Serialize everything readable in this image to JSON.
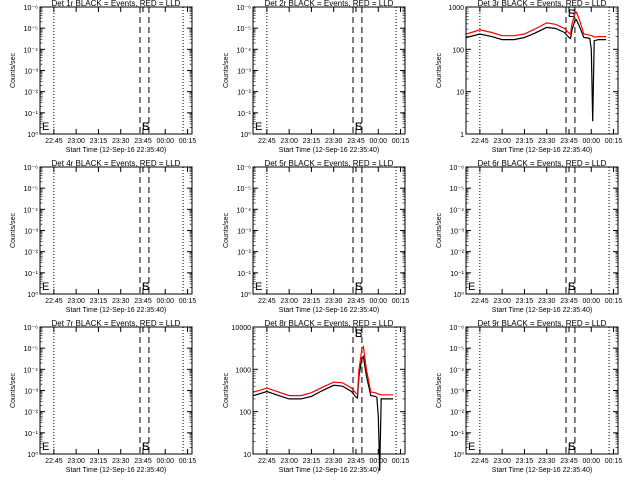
{
  "figure": {
    "xlabel": "Start Time (12-Sep-16 22:35:40)",
    "ylabel": "Counts/sec",
    "x_ticks": [
      "22:45",
      "23:00",
      "23:15",
      "23:30",
      "23:45",
      "00:00",
      "00:15"
    ],
    "x_range": [
      "22:35:40",
      "00:18:00"
    ],
    "flag_labels": [
      "E",
      "S",
      "E"
    ],
    "colors": {
      "events": "#000000",
      "lld": "#ff0000",
      "axes": "#000000",
      "background": "#ffffff"
    }
  },
  "chart_data": [
    {
      "title": "Det 1r BLACK = Events, RED = LLD",
      "type": "line",
      "yscale": "log",
      "ytick_labels": [
        "10⁰",
        "10⁻¹",
        "10⁻²",
        "10⁻³",
        "10⁻⁴",
        "10⁻⁵",
        "10⁻⁶"
      ],
      "series": []
    },
    {
      "title": "Det 2r BLACK = Events, RED = LLD",
      "type": "line",
      "yscale": "log",
      "ytick_labels": [
        "10⁰",
        "10⁻¹",
        "10⁻²",
        "10⁻³",
        "10⁻⁴",
        "10⁻⁵",
        "10⁻⁶"
      ],
      "series": []
    },
    {
      "title": "Det 3r BLACK = Events, RED = LLD",
      "type": "line",
      "yscale": "log",
      "ytick_labels": [
        "1000",
        "100",
        "10",
        "1"
      ],
      "series": [
        {
          "color": "#000000",
          "x": [
            "22:36",
            "22:45",
            "22:53",
            "23:00",
            "23:08",
            "23:15",
            "23:22",
            "23:30",
            "23:36",
            "23:42",
            "23:45",
            "23:46",
            "23:47",
            "23:49",
            "23:50",
            "23:52",
            "23:55",
            "23:58",
            "23:59",
            "00:00",
            "00:01",
            "00:02",
            "00:05",
            "00:10"
          ],
          "y": [
            190,
            230,
            200,
            170,
            170,
            190,
            240,
            330,
            310,
            250,
            190,
            180,
            290,
            480,
            500,
            350,
            190,
            185,
            180,
            100,
            2,
            160,
            170,
            170
          ]
        },
        {
          "color": "#ff0000",
          "x": [
            "22:36",
            "22:45",
            "22:53",
            "23:00",
            "23:08",
            "23:15",
            "23:22",
            "23:30",
            "23:36",
            "23:42",
            "23:45",
            "23:46",
            "23:47",
            "23:49",
            "23:50",
            "23:52",
            "23:55",
            "23:58",
            "23:59",
            "00:00",
            "00:01",
            "00:02",
            "00:05",
            "00:10"
          ],
          "y": [
            230,
            290,
            250,
            210,
            210,
            230,
            300,
            420,
            390,
            310,
            240,
            230,
            400,
            700,
            750,
            500,
            230,
            220,
            215,
            210,
            205,
            195,
            200,
            200
          ]
        }
      ]
    },
    {
      "title": "Det 4r BLACK = Events, RED = LLD",
      "type": "line",
      "yscale": "log",
      "ytick_labels": [
        "10⁰",
        "10⁻¹",
        "10⁻²",
        "10⁻³",
        "10⁻⁴",
        "10⁻⁵",
        "10⁻⁶"
      ],
      "series": []
    },
    {
      "title": "Det 5r BLACK = Events, RED = LLD",
      "type": "line",
      "yscale": "log",
      "ytick_labels": [
        "10⁰",
        "10⁻¹",
        "10⁻²",
        "10⁻³",
        "10⁻⁴",
        "10⁻⁵",
        "10⁻⁶"
      ],
      "series": []
    },
    {
      "title": "Det 6r BLACK = Events, RED = LLD",
      "type": "line",
      "yscale": "log",
      "ytick_labels": [
        "10⁰",
        "10⁻¹",
        "10⁻²",
        "10⁻³",
        "10⁻⁴",
        "10⁻⁵",
        "10⁻⁶"
      ],
      "series": []
    },
    {
      "title": "Det 7r BLACK = Events, RED = LLD",
      "type": "line",
      "yscale": "log",
      "ytick_labels": [
        "10⁰",
        "10⁻¹",
        "10⁻²",
        "10⁻³",
        "10⁻⁴",
        "10⁻⁵",
        "10⁻⁶"
      ],
      "series": []
    },
    {
      "title": "Det 8r BLACK = Events, RED = LLD",
      "type": "line",
      "yscale": "log",
      "ytick_labels": [
        "10000",
        "1000",
        "100",
        "10"
      ],
      "series": [
        {
          "color": "#000000",
          "x": [
            "22:36",
            "22:45",
            "22:53",
            "23:00",
            "23:08",
            "23:15",
            "23:22",
            "23:30",
            "23:36",
            "23:42",
            "23:45",
            "23:46",
            "23:47",
            "23:49",
            "23:50",
            "23:52",
            "23:55",
            "23:58",
            "23:59",
            "00:00",
            "00:01",
            "00:02",
            "00:05",
            "00:10"
          ],
          "y": [
            240,
            300,
            240,
            200,
            200,
            230,
            310,
            420,
            400,
            300,
            220,
            210,
            700,
            1800,
            2000,
            700,
            240,
            230,
            220,
            80,
            4,
            200,
            200,
            200
          ]
        },
        {
          "color": "#ff0000",
          "x": [
            "22:36",
            "22:45",
            "22:53",
            "23:00",
            "23:08",
            "23:15",
            "23:22",
            "23:30",
            "23:36",
            "23:42",
            "23:45",
            "23:46",
            "23:47",
            "23:49",
            "23:50",
            "23:52",
            "23:55",
            "23:58",
            "23:59",
            "00:00",
            "00:01",
            "00:02",
            "00:05",
            "00:10"
          ],
          "y": [
            290,
            360,
            290,
            240,
            240,
            280,
            370,
            500,
            480,
            360,
            270,
            260,
            1000,
            3000,
            3400,
            1000,
            290,
            280,
            270,
            260,
            255,
            250,
            250,
            250
          ]
        }
      ]
    },
    {
      "title": "Det 9r BLACK = Events, RED = LLD",
      "type": "line",
      "yscale": "log",
      "ytick_labels": [
        "10⁰",
        "10⁻¹",
        "10⁻²",
        "10⁻³",
        "10⁻⁴",
        "10⁻⁵",
        "10⁻⁶"
      ],
      "series": []
    }
  ]
}
